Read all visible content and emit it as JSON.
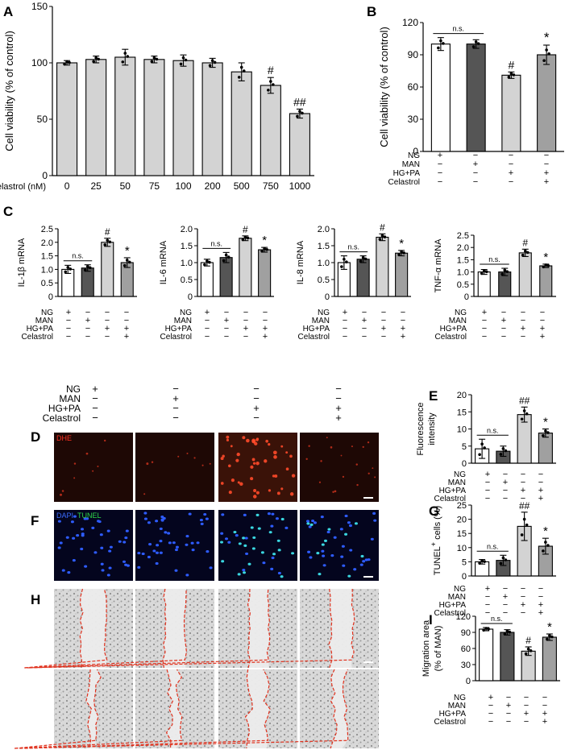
{
  "chart_data": [
    {
      "id": "A",
      "type": "bar",
      "panel_label": "A",
      "ylabel": "Cell viability (% of control)",
      "ylim": [
        0,
        150
      ],
      "yticks": [
        0,
        50,
        100,
        150
      ],
      "xlabel": "Celastrol (nM)",
      "categories": [
        "0",
        "25",
        "50",
        "75",
        "100",
        "200",
        "500",
        "750",
        "1000"
      ],
      "values": [
        100,
        103,
        105,
        103,
        102,
        100,
        92,
        80,
        55
      ],
      "errors": [
        2,
        3,
        7,
        3,
        5,
        4,
        8,
        7,
        4
      ],
      "annotations": [
        "",
        "",
        "",
        "",
        "",
        "",
        "",
        "#",
        "##"
      ],
      "colors": [
        "#d3d3d3"
      ]
    },
    {
      "id": "B",
      "type": "bar",
      "panel_label": "B",
      "ylabel": "Cell viability (% of control)",
      "ylim": [
        0,
        120
      ],
      "yticks": [
        0,
        30,
        60,
        90,
        120
      ],
      "values": [
        100,
        100,
        71,
        90
      ],
      "errors": [
        6,
        4,
        3,
        9
      ],
      "annotations": [
        "",
        "",
        "#",
        "*"
      ],
      "ns": "n.s.",
      "colors": [
        "#ffffff",
        "#555555",
        "#d3d3d3",
        "#a0a0a0"
      ]
    },
    {
      "id": "C1",
      "type": "bar",
      "panel_label": "C",
      "ylabel": "IL-1β mRNA",
      "ylim": [
        0,
        2.5
      ],
      "yticks": [
        "0",
        "0.5",
        "1.0",
        "1.5",
        "2.0",
        "2.5"
      ],
      "values": [
        1.0,
        1.05,
        2.0,
        1.25
      ],
      "errors": [
        0.15,
        0.12,
        0.15,
        0.18
      ],
      "annotations": [
        "",
        "",
        "#",
        "*"
      ],
      "ns": "n.s.",
      "colors": [
        "#ffffff",
        "#555555",
        "#d3d3d3",
        "#a0a0a0"
      ]
    },
    {
      "id": "C2",
      "type": "bar",
      "ylabel": "IL-6 mRNA",
      "ylim": [
        0,
        2.0
      ],
      "yticks": [
        "0",
        "0.5",
        "1.0",
        "1.5",
        "2.0"
      ],
      "values": [
        1.0,
        1.15,
        1.72,
        1.38
      ],
      "errors": [
        0.1,
        0.15,
        0.07,
        0.07
      ],
      "annotations": [
        "",
        "",
        "#",
        "*"
      ],
      "ns": "n.s.",
      "colors": [
        "#ffffff",
        "#555555",
        "#d3d3d3",
        "#a0a0a0"
      ]
    },
    {
      "id": "C3",
      "type": "bar",
      "ylabel": "IL-8 mRNA",
      "ylim": [
        0,
        2.0
      ],
      "yticks": [
        "0",
        "0.5",
        "1.0",
        "1.5",
        "2.0"
      ],
      "values": [
        1.0,
        1.1,
        1.75,
        1.28
      ],
      "errors": [
        0.2,
        0.1,
        0.1,
        0.08
      ],
      "annotations": [
        "",
        "",
        "#",
        "*"
      ],
      "ns": "n.s.",
      "colors": [
        "#ffffff",
        "#555555",
        "#d3d3d3",
        "#a0a0a0"
      ]
    },
    {
      "id": "C4",
      "type": "bar",
      "ylabel": "TNF-α mRNA",
      "ylim": [
        0,
        2.5
      ],
      "yticks": [
        "0",
        "0.5",
        "1.0",
        "1.5",
        "2.0",
        "2.5"
      ],
      "values": [
        1.0,
        1.0,
        1.78,
        1.25
      ],
      "errors": [
        0.1,
        0.15,
        0.15,
        0.07
      ],
      "annotations": [
        "",
        "",
        "#",
        "*"
      ],
      "ns": "n.s.",
      "colors": [
        "#ffffff",
        "#555555",
        "#d3d3d3",
        "#a0a0a0"
      ]
    },
    {
      "id": "E",
      "type": "bar",
      "panel_label": "E",
      "ylabel": "Fluorescence intensity",
      "ylim": [
        0,
        20
      ],
      "yticks": [
        "0",
        "5",
        "10",
        "15",
        "20"
      ],
      "values": [
        4.2,
        3.5,
        14.2,
        8.8
      ],
      "errors": [
        2.8,
        1.5,
        2.2,
        1.2
      ],
      "annotations": [
        "",
        "",
        "##",
        "*"
      ],
      "ns": "n.s.",
      "colors": [
        "#ffffff",
        "#555555",
        "#d3d3d3",
        "#a0a0a0"
      ]
    },
    {
      "id": "G",
      "type": "bar",
      "panel_label": "G",
      "ylabel": "TUNEL",
      "ylabel_sup": "+",
      "ylabel_suffix": " cells (%)",
      "ylim": [
        0,
        25
      ],
      "yticks": [
        "0",
        "5",
        "10",
        "15",
        "20",
        "25"
      ],
      "values": [
        5.0,
        5.5,
        17.5,
        10.5
      ],
      "errors": [
        0.8,
        1.8,
        5.0,
        2.8
      ],
      "annotations": [
        "",
        "",
        "##",
        "*"
      ],
      "ns": "n.s.",
      "colors": [
        "#ffffff",
        "#555555",
        "#d3d3d3",
        "#a0a0a0"
      ]
    },
    {
      "id": "I",
      "type": "bar",
      "panel_label": "I",
      "ylabel": "Migration area",
      "ylabel2": "(% of MAN)",
      "ylim": [
        0,
        120
      ],
      "yticks": [
        "0",
        "30",
        "60",
        "90",
        "120"
      ],
      "values": [
        96,
        90,
        55,
        81
      ],
      "errors": [
        3,
        5,
        8,
        6
      ],
      "annotations": [
        "",
        "",
        "#",
        "*"
      ],
      "ns": "n.s.",
      "colors": [
        "#ffffff",
        "#555555",
        "#d3d3d3",
        "#a0a0a0"
      ]
    }
  ],
  "conditions": {
    "rows": [
      {
        "label": "NG",
        "signs": [
          "+",
          "−",
          "−",
          "−"
        ]
      },
      {
        "label": "MAN",
        "signs": [
          "−",
          "+",
          "−",
          "−"
        ]
      },
      {
        "label": "HG+PA",
        "signs": [
          "−",
          "−",
          "+",
          "+"
        ]
      },
      {
        "label": "Celastrol",
        "signs": [
          "−",
          "−",
          "−",
          "+"
        ]
      }
    ]
  },
  "images": {
    "panel_labels": {
      "D": "D",
      "F": "F",
      "H": "H"
    },
    "dhe_label": "DHE",
    "dapi_label": "DAPI",
    "tunel_label": "TUNEL"
  }
}
